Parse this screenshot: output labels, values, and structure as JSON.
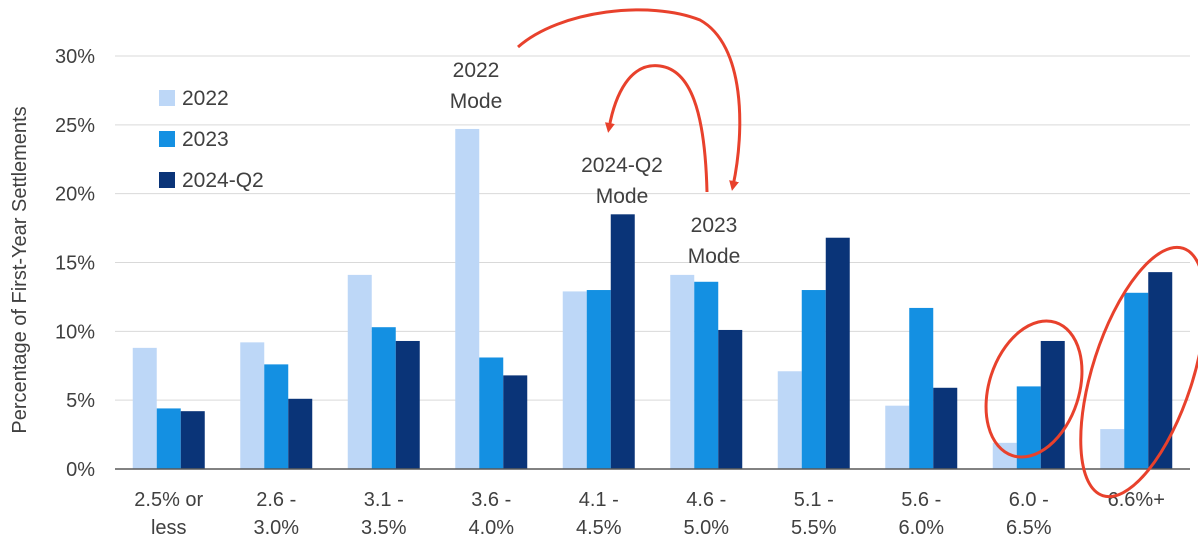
{
  "chart_data": {
    "type": "bar",
    "title": "",
    "xlabel": "",
    "ylabel": "Percentage of First-Year Settlements",
    "ylim": [
      0,
      30
    ],
    "yticks": [
      0,
      5,
      10,
      15,
      20,
      25,
      30
    ],
    "ytick_labels": [
      "0%",
      "5%",
      "10%",
      "15%",
      "20%",
      "25%",
      "30%"
    ],
    "categories": [
      [
        "2.5% or",
        "less"
      ],
      [
        "2.6 -",
        "3.0%"
      ],
      [
        "3.1 -",
        "3.5%"
      ],
      [
        "3.6 -",
        "4.0%"
      ],
      [
        "4.1 -",
        "4.5%"
      ],
      [
        "4.6 -",
        "5.0%"
      ],
      [
        "5.1 -",
        "5.5%"
      ],
      [
        "5.6 -",
        "6.0%"
      ],
      [
        "6.0 -",
        "6.5%"
      ],
      [
        "6.6%+"
      ]
    ],
    "series": [
      {
        "name": "2022",
        "color": "#BDD7F7",
        "values": [
          8.8,
          9.2,
          14.1,
          24.7,
          12.9,
          14.1,
          7.1,
          4.6,
          1.9,
          2.9
        ]
      },
      {
        "name": "2023",
        "color": "#1490E2",
        "values": [
          4.4,
          7.6,
          10.3,
          8.1,
          13.0,
          13.6,
          13.0,
          11.7,
          6.0,
          12.8
        ]
      },
      {
        "name": "2024-Q2",
        "color": "#0A3478",
        "values": [
          4.2,
          5.1,
          9.3,
          6.8,
          18.5,
          10.1,
          16.8,
          5.9,
          9.3,
          14.3
        ]
      }
    ],
    "legend_position": "top-left",
    "grid": true,
    "annotations": [
      {
        "text": [
          "2022",
          "Mode"
        ]
      },
      {
        "text": [
          "2024-Q2",
          "Mode"
        ]
      },
      {
        "text": [
          "2023",
          "Mode"
        ]
      }
    ],
    "highlight_color": "#E8412C"
  }
}
